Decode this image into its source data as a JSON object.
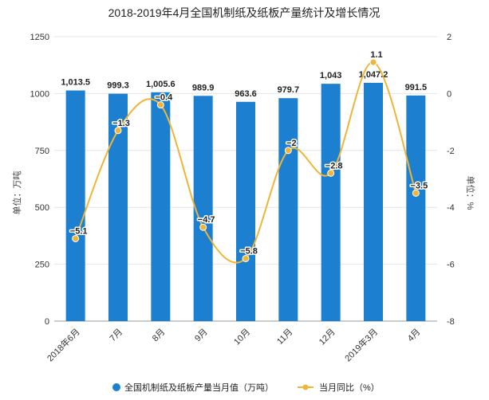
{
  "chart_data": {
    "type": "bar",
    "title": "2018-2019年4月全国机制纸及纸板产量统计及增长情况",
    "categories": [
      "2018年6月",
      "7月",
      "8月",
      "9月",
      "10月",
      "11月",
      "12月",
      "2019年3月",
      "4月"
    ],
    "series": [
      {
        "name": "全国机制纸及纸板产量当月值（万吨）",
        "type": "bar",
        "axis": "left",
        "values": [
          1013.5,
          999.3,
          1005.6,
          989.9,
          963.6,
          979.7,
          1043,
          1047.2,
          991.5
        ],
        "labels": [
          "1,013.5",
          "999.3",
          "1,005.6",
          "989.9",
          "963.6",
          "979.7",
          "1,043",
          "1,047.2",
          "991.5"
        ]
      },
      {
        "name": "当月同比（%）",
        "type": "line",
        "axis": "right",
        "values": [
          -5.1,
          -1.3,
          -0.4,
          -4.7,
          -5.8,
          -2,
          -2.8,
          1.1,
          -3.5
        ],
        "labels": [
          "−5.1",
          "−1.3",
          "−0.4",
          "−4.7",
          "−5.8",
          "−2",
          "−2.8",
          "1.1",
          "−3.5"
        ]
      }
    ],
    "ylabel": "单位：万吨",
    "y2label": "单位：%",
    "ylim": [
      0,
      1250
    ],
    "yticks": [
      0,
      250,
      500,
      750,
      1000,
      1250
    ],
    "y2lim": [
      -8,
      2
    ],
    "y2ticks": [
      -8,
      -6,
      -4,
      -2,
      0,
      2
    ],
    "legend_position": "bottom",
    "colors": {
      "bar": "#1c7fd0",
      "line": "#f0b437"
    }
  }
}
